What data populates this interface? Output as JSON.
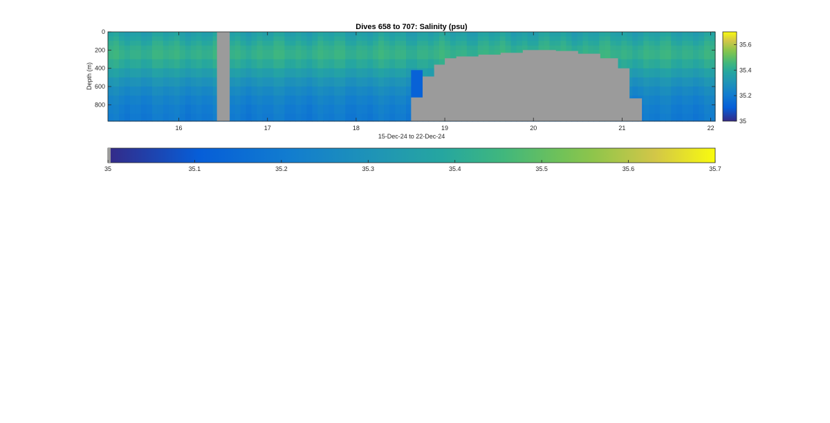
{
  "chart_data": {
    "type": "heatmap",
    "title": "Dives 658 to 707: Salinity (psu)",
    "xlabel": "15-Dec-24 to 22-Dec-24",
    "ylabel": "Depth (m)",
    "xlim": [
      15.2,
      22.05
    ],
    "ylim": [
      0,
      980
    ],
    "y_reversed": true,
    "x_ticks": [
      16,
      17,
      18,
      19,
      20,
      21,
      22
    ],
    "y_ticks": [
      0,
      200,
      400,
      600,
      800
    ],
    "colorbar_right": {
      "ticks": [
        35,
        35.2,
        35.4,
        35.6
      ],
      "clim": [
        35,
        35.7
      ]
    },
    "colorbar_bottom": {
      "ticks": [
        35,
        35.1,
        35.2,
        35.3,
        35.4,
        35.5,
        35.6,
        35.7
      ],
      "clim": [
        35,
        35.7
      ]
    },
    "colormap": "parula",
    "missing_color": "#9b9b9b",
    "depth_bins": [
      0,
      50,
      100,
      150,
      200,
      300,
      400,
      500,
      600,
      700,
      800,
      900,
      980
    ],
    "profile_salinity_by_depth": [
      35.36,
      35.38,
      35.4,
      35.42,
      35.43,
      35.4,
      35.35,
      35.3,
      35.26,
      35.23,
      35.21,
      35.2
    ],
    "missing_regions": [
      {
        "x0": 16.43,
        "x1": 16.57,
        "depth_from": 0,
        "depth_to": 980
      },
      {
        "x0": 18.62,
        "x1": 18.75,
        "depth_from": 720,
        "depth_to": 980
      },
      {
        "x0": 18.75,
        "x1": 18.88,
        "depth_from": 490,
        "depth_to": 980
      },
      {
        "x0": 18.88,
        "x1": 19.0,
        "depth_from": 360,
        "depth_to": 980
      },
      {
        "x0": 19.0,
        "x1": 19.13,
        "depth_from": 290,
        "depth_to": 980
      },
      {
        "x0": 19.13,
        "x1": 19.38,
        "depth_from": 270,
        "depth_to": 980
      },
      {
        "x0": 19.38,
        "x1": 19.63,
        "depth_from": 250,
        "depth_to": 980
      },
      {
        "x0": 19.63,
        "x1": 19.88,
        "depth_from": 230,
        "depth_to": 980
      },
      {
        "x0": 19.88,
        "x1": 20.25,
        "depth_from": 200,
        "depth_to": 980
      },
      {
        "x0": 20.25,
        "x1": 20.5,
        "depth_from": 210,
        "depth_to": 980
      },
      {
        "x0": 20.5,
        "x1": 20.75,
        "depth_from": 240,
        "depth_to": 980
      },
      {
        "x0": 20.75,
        "x1": 20.95,
        "depth_from": 290,
        "depth_to": 980
      },
      {
        "x0": 20.95,
        "x1": 21.08,
        "depth_from": 400,
        "depth_to": 980
      },
      {
        "x0": 21.08,
        "x1": 21.22,
        "depth_from": 730,
        "depth_to": 980
      }
    ],
    "anomaly": {
      "x0": 18.62,
      "x1": 18.75,
      "depth_from": 420,
      "depth_to": 720,
      "salinity": 35.12
    }
  }
}
